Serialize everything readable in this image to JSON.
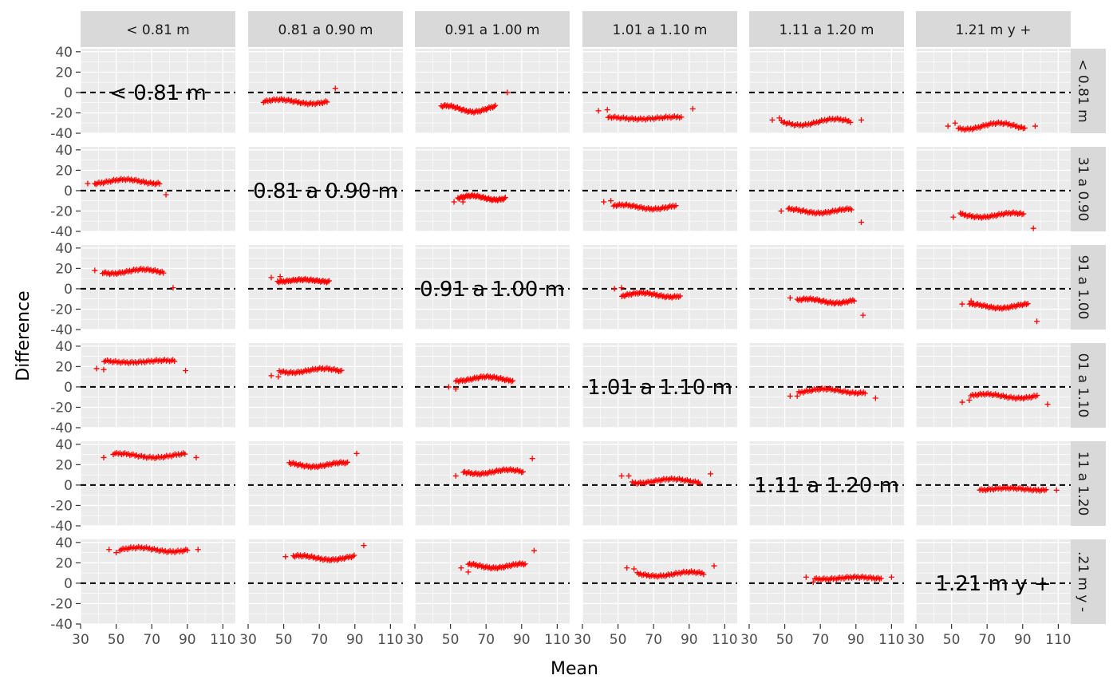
{
  "chart_data": {
    "type": "scatter",
    "layout": "facet-grid",
    "xlabel": "Mean",
    "ylabel": "Difference",
    "xlim": [
      30,
      117
    ],
    "ylim": [
      -40,
      43
    ],
    "x_ticks": [
      30,
      50,
      70,
      90,
      110
    ],
    "y_ticks": [
      40,
      20,
      0,
      -20,
      -40
    ],
    "reference_line": 0,
    "grid": true,
    "facets": [
      "< 0.81 m",
      "0.81 a 0.90 m",
      "0.91 a 1.00 m",
      "1.01 a 1.10 m",
      "1.11 a 1.20 m",
      "1.21 m y +"
    ],
    "row_strip_labels": [
      "< 0.81 m",
      "31 a 0.90",
      "91 a 1.00",
      "01 a 1.10",
      "11 a 1.20",
      ".21 m y -"
    ],
    "colors": {
      "points": "#ff0000",
      "panel": "#ebebeb",
      "strip": "#d9d9d9",
      "gridline": "#ffffff",
      "reference": "#000000"
    },
    "pairs": [
      {
        "row": 0,
        "col": 1,
        "x_range": [
          33,
          80
        ],
        "center": -9,
        "wave": 2,
        "outliers": [
          [
            79,
            4
          ]
        ]
      },
      {
        "row": 0,
        "col": 2,
        "x_range": [
          40,
          80
        ],
        "center": -16,
        "wave": 3,
        "outliers": [
          [
            82,
            0
          ]
        ]
      },
      {
        "row": 0,
        "col": 3,
        "x_range": [
          38,
          92
        ],
        "center": -25,
        "wave": 1,
        "outliers": [
          [
            39,
            -18
          ],
          [
            44,
            -17
          ],
          [
            92,
            -16
          ]
        ]
      },
      {
        "row": 0,
        "col": 4,
        "x_range": [
          42,
          93
        ],
        "center": -29,
        "wave": 3,
        "outliers": [
          [
            43,
            -27
          ],
          [
            47,
            -25
          ],
          [
            93,
            -27
          ]
        ]
      },
      {
        "row": 0,
        "col": 5,
        "x_range": [
          48,
          97
        ],
        "center": -33,
        "wave": 3,
        "outliers": [
          [
            48,
            -33
          ],
          [
            52,
            -30
          ],
          [
            97,
            -33
          ]
        ]
      },
      {
        "row": 1,
        "col": 0,
        "x_range": [
          33,
          80
        ],
        "center": 9,
        "wave": 2,
        "outliers": [
          [
            34,
            7
          ],
          [
            38,
            7
          ],
          [
            78,
            -4
          ]
        ]
      },
      {
        "row": 1,
        "col": 2,
        "x_range": [
          50,
          85
        ],
        "center": -7,
        "wave": 2,
        "outliers": [
          [
            52,
            -11
          ],
          [
            57,
            -11
          ]
        ]
      },
      {
        "row": 1,
        "col": 3,
        "x_range": [
          42,
          88
        ],
        "center": -16,
        "wave": 2,
        "outliers": [
          [
            42,
            -11
          ],
          [
            46,
            -10
          ]
        ]
      },
      {
        "row": 1,
        "col": 4,
        "x_range": [
          47,
          93
        ],
        "center": -20,
        "wave": 2,
        "outliers": [
          [
            48,
            -20
          ],
          [
            52,
            -18
          ],
          [
            93,
            -31
          ]
        ]
      },
      {
        "row": 1,
        "col": 5,
        "x_range": [
          50,
          96
        ],
        "center": -24,
        "wave": 2,
        "outliers": [
          [
            51,
            -26
          ],
          [
            55,
            -22
          ],
          [
            96,
            -37
          ]
        ]
      },
      {
        "row": 2,
        "col": 0,
        "x_range": [
          37,
          82
        ],
        "center": 17,
        "wave": 2,
        "outliers": [
          [
            38,
            18
          ],
          [
            82,
            1
          ]
        ]
      },
      {
        "row": 2,
        "col": 1,
        "x_range": [
          42,
          80
        ],
        "center": 8,
        "wave": 1,
        "outliers": [
          [
            43,
            11
          ],
          [
            48,
            12
          ]
        ]
      },
      {
        "row": 2,
        "col": 3,
        "x_range": [
          47,
          90
        ],
        "center": -6,
        "wave": 2,
        "outliers": [
          [
            48,
            0
          ],
          [
            52,
            1
          ]
        ]
      },
      {
        "row": 2,
        "col": 4,
        "x_range": [
          52,
          94
        ],
        "center": -12,
        "wave": 2,
        "outliers": [
          [
            53,
            -9
          ],
          [
            94,
            -26
          ]
        ]
      },
      {
        "row": 2,
        "col": 5,
        "x_range": [
          55,
          98
        ],
        "center": -17,
        "wave": 2,
        "outliers": [
          [
            56,
            -15
          ],
          [
            61,
            -12
          ],
          [
            98,
            -32
          ]
        ]
      },
      {
        "row": 3,
        "col": 0,
        "x_range": [
          37,
          89
        ],
        "center": 25,
        "wave": 1,
        "outliers": [
          [
            39,
            18
          ],
          [
            43,
            17
          ],
          [
            89,
            16
          ]
        ]
      },
      {
        "row": 3,
        "col": 1,
        "x_range": [
          42,
          88
        ],
        "center": 16,
        "wave": 2,
        "outliers": [
          [
            43,
            11
          ],
          [
            47,
            10
          ]
        ]
      },
      {
        "row": 3,
        "col": 2,
        "x_range": [
          48,
          90
        ],
        "center": 8,
        "wave": 2,
        "outliers": [
          [
            49,
            0
          ],
          [
            53,
            -2
          ]
        ]
      },
      {
        "row": 3,
        "col": 4,
        "x_range": [
          52,
          101
        ],
        "center": -4,
        "wave": 2,
        "outliers": [
          [
            53,
            -9
          ],
          [
            57,
            -9
          ],
          [
            101,
            -11
          ]
        ]
      },
      {
        "row": 3,
        "col": 5,
        "x_range": [
          55,
          104
        ],
        "center": -9,
        "wave": 2,
        "outliers": [
          [
            56,
            -15
          ],
          [
            60,
            -13
          ],
          [
            104,
            -17
          ]
        ]
      },
      {
        "row": 4,
        "col": 0,
        "x_range": [
          42,
          95
        ],
        "center": 29,
        "wave": 2,
        "outliers": [
          [
            43,
            27
          ],
          [
            95,
            27
          ]
        ]
      },
      {
        "row": 4,
        "col": 1,
        "x_range": [
          48,
          91
        ],
        "center": 20,
        "wave": 2,
        "outliers": [
          [
            91,
            31
          ]
        ]
      },
      {
        "row": 4,
        "col": 2,
        "x_range": [
          52,
          96
        ],
        "center": 13,
        "wave": 2,
        "outliers": [
          [
            53,
            9
          ],
          [
            96,
            26
          ]
        ]
      },
      {
        "row": 4,
        "col": 3,
        "x_range": [
          52,
          102
        ],
        "center": 4,
        "wave": 2,
        "outliers": [
          [
            52,
            9
          ],
          [
            56,
            9
          ],
          [
            102,
            11
          ]
        ]
      },
      {
        "row": 4,
        "col": 5,
        "x_range": [
          60,
          109
        ],
        "center": -4,
        "wave": 1,
        "outliers": [
          [
            109,
            -5
          ]
        ]
      },
      {
        "row": 5,
        "col": 0,
        "x_range": [
          46,
          96
        ],
        "center": 33,
        "wave": 2,
        "outliers": [
          [
            46,
            33
          ],
          [
            50,
            30
          ],
          [
            96,
            33
          ]
        ]
      },
      {
        "row": 5,
        "col": 1,
        "x_range": [
          50,
          95
        ],
        "center": 25,
        "wave": 2,
        "outliers": [
          [
            51,
            26
          ],
          [
            95,
            37
          ]
        ]
      },
      {
        "row": 5,
        "col": 2,
        "x_range": [
          55,
          97
        ],
        "center": 17,
        "wave": 2,
        "outliers": [
          [
            56,
            15
          ],
          [
            60,
            11
          ],
          [
            97,
            32
          ]
        ]
      },
      {
        "row": 5,
        "col": 3,
        "x_range": [
          55,
          104
        ],
        "center": 9,
        "wave": 2,
        "outliers": [
          [
            55,
            15
          ],
          [
            59,
            14
          ],
          [
            104,
            17
          ]
        ]
      },
      {
        "row": 5,
        "col": 4,
        "x_range": [
          61,
          110
        ],
        "center": 5,
        "wave": 1,
        "outliers": [
          [
            62,
            6
          ],
          [
            66,
            1
          ],
          [
            110,
            6
          ]
        ]
      }
    ]
  }
}
